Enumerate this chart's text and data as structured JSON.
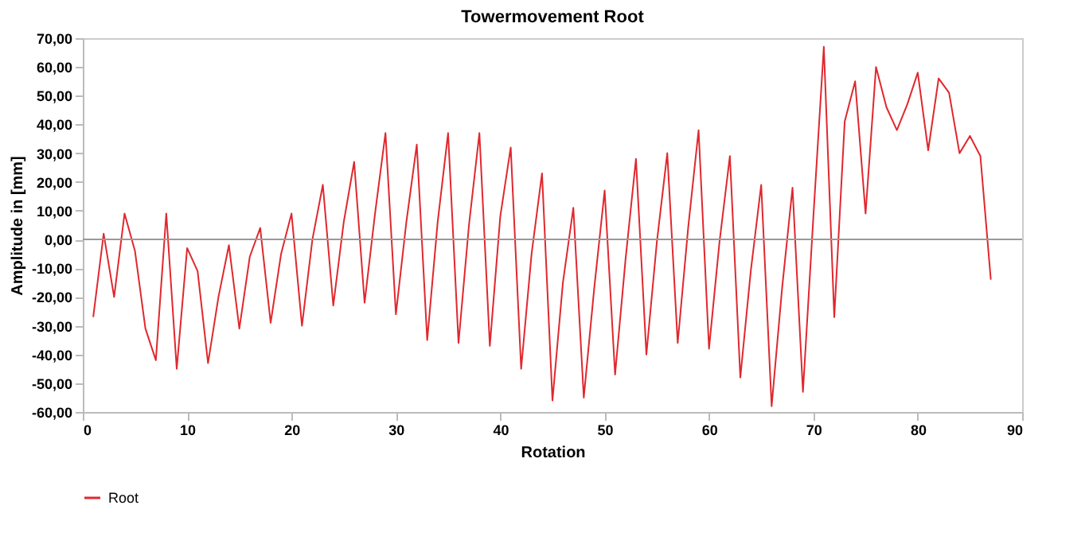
{
  "chart_data": {
    "type": "line",
    "title": "Towermovement Root",
    "xlabel": "Rotation",
    "ylabel": "Amplitude in [mm]",
    "x": [
      1,
      2,
      3,
      4,
      5,
      6,
      7,
      8,
      9,
      10,
      11,
      12,
      13,
      14,
      15,
      16,
      17,
      18,
      19,
      20,
      21,
      22,
      23,
      24,
      25,
      26,
      27,
      28,
      29,
      30,
      31,
      32,
      33,
      34,
      35,
      36,
      37,
      38,
      39,
      40,
      41,
      42,
      43,
      44,
      45,
      46,
      47,
      48,
      49,
      50,
      51,
      52,
      53,
      54,
      55,
      56,
      57,
      58,
      59,
      60,
      61,
      62,
      63,
      64,
      65,
      66,
      67,
      68,
      69,
      70,
      71,
      72,
      73,
      74,
      75,
      76,
      77,
      78,
      79,
      80,
      81,
      82,
      83,
      84,
      85,
      86,
      87
    ],
    "series": [
      {
        "name": "Root",
        "color": "#e0282e",
        "values": [
          -27,
          2,
          -20,
          9,
          -4,
          -31,
          -42,
          9,
          -45,
          -3,
          -11,
          -43,
          -20,
          -2,
          -31,
          -6,
          4,
          -29,
          -5,
          9,
          -30,
          0,
          19,
          -23,
          6,
          27,
          -22,
          9,
          37,
          -26,
          6,
          33,
          -35,
          6,
          37,
          -36,
          5,
          37,
          -37,
          8,
          32,
          -45,
          -5,
          23,
          -56,
          -15,
          11,
          -55,
          -17,
          17,
          -47,
          -7,
          28,
          -40,
          -1,
          30,
          -36,
          4,
          38,
          -38,
          -1,
          29,
          -48,
          -11,
          19,
          -58,
          -17,
          18,
          -53,
          8,
          67,
          -27,
          41,
          55,
          9,
          60,
          46,
          38,
          47,
          58,
          31,
          56,
          51,
          30,
          36,
          29,
          -14
        ]
      }
    ],
    "xlim": [
      0,
      90
    ],
    "xticks": [
      0,
      10,
      20,
      30,
      40,
      50,
      60,
      70,
      80,
      90
    ],
    "ylim": [
      -60,
      70
    ],
    "yticks": [
      {
        "value": -60,
        "label": "-60,00"
      },
      {
        "value": -50,
        "label": "-50,00"
      },
      {
        "value": -40,
        "label": "-40,00"
      },
      {
        "value": -30,
        "label": "-30,00"
      },
      {
        "value": -20,
        "label": "-20,00"
      },
      {
        "value": -10,
        "label": "-10,00"
      },
      {
        "value": 0,
        "label": "0,00"
      },
      {
        "value": 10,
        "label": "10,00"
      },
      {
        "value": 20,
        "label": "20,00"
      },
      {
        "value": 30,
        "label": "30,00"
      },
      {
        "value": 40,
        "label": "40,00"
      },
      {
        "value": 50,
        "label": "50,00"
      },
      {
        "value": 60,
        "label": "60,00"
      },
      {
        "value": 70,
        "label": "70,00"
      }
    ],
    "ref_lines": [
      {
        "axis": "y",
        "value": 0,
        "color": "#999999"
      }
    ],
    "legend": "bottom",
    "grid": false,
    "marker": "none",
    "line_style": "solid"
  }
}
